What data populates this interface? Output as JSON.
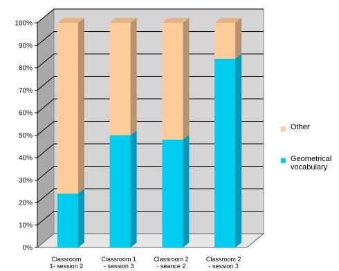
{
  "chart_data": {
    "type": "bar",
    "stacked": true,
    "percent": true,
    "three_d": true,
    "grid": true,
    "legend_position": "right",
    "categories": [
      "Classroom\n1- session 2",
      "Classroom 1\n- session 3",
      "Classroom 2\n- séance 2",
      "Classroom 2\n- session 3"
    ],
    "series": [
      {
        "name": "Geometrical vocabulary",
        "values": [
          24,
          50,
          48,
          84
        ],
        "color": "#00ccee",
        "side_color": "#0099bb",
        "top_color": "#00b0d8"
      },
      {
        "name": "Other",
        "values": [
          76,
          50,
          52,
          16
        ],
        "color": "#ffcc99",
        "side_color": "#b8916e",
        "top_color": "#e0b488"
      }
    ],
    "y_ticks": [
      "0%",
      "10%",
      "20%",
      "30%",
      "40%",
      "50%",
      "60%",
      "70%",
      "80%",
      "90%",
      "100%"
    ],
    "ylim": [
      0,
      100
    ],
    "title": "",
    "xlabel": "",
    "ylabel": ""
  },
  "legend": {
    "items": [
      {
        "label": "Other",
        "color": "#ffcc99"
      },
      {
        "label": "Geometrical\nvocabulary",
        "color": "#00ccee"
      }
    ]
  }
}
